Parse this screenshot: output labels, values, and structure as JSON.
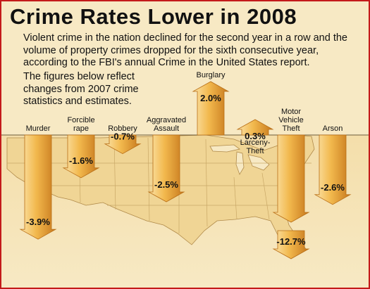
{
  "title": "Crime Rates Lower in 2008",
  "intro_para1": "Violent crime in the nation declined for the second year in a row and the volume of property crimes dropped for the sixth consecutive year, according to the FBI's annual Crime in the United States report.",
  "intro_para2": "The figures below reflect changes from 2007 crime statistics and estimates.",
  "colors": {
    "arrow_light": "#fbe3a8",
    "arrow_mid": "#f2b84d",
    "arrow_dark": "#c7791d",
    "map_land": "#f0d595",
    "background": "#f7e9c4",
    "frame": "#c41a1a"
  },
  "chart_data": {
    "type": "bar",
    "title": "Crime Rates Lower in 2008",
    "categories": [
      "Murder",
      "Forcible rape",
      "Robbery",
      "Aggravated Assault",
      "Burglary",
      "Larceny-Theft",
      "Motor Vehicle Theft",
      "Arson"
    ],
    "values": [
      -3.9,
      -1.6,
      -0.7,
      -2.5,
      2.0,
      0.3,
      -12.7,
      -2.6
    ],
    "value_labels": [
      "-3.9%",
      "-1.6%",
      "-0.7%",
      "-2.5%",
      "2.0%",
      "0.3%",
      "-12.7%",
      "-2.6%"
    ],
    "unit": "%",
    "axis_break_on": "Motor Vehicle Theft",
    "grid": false,
    "legend": "none"
  }
}
